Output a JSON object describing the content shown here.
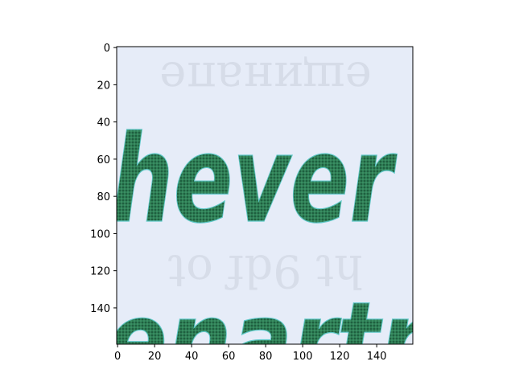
{
  "chart_data": {
    "type": "heatmap",
    "title": "",
    "xlabel": "",
    "ylabel": "",
    "image_width": 160,
    "image_height": 160,
    "xlim": [
      -0.5,
      159.5
    ],
    "ylim": [
      159.5,
      -0.5
    ],
    "x_ticks": [
      0,
      20,
      40,
      60,
      80,
      100,
      120,
      140
    ],
    "y_ticks": [
      0,
      20,
      40,
      60,
      80,
      100,
      120,
      140
    ],
    "x_tick_labels": [
      "0",
      "20",
      "40",
      "60",
      "80",
      "100",
      "120",
      "140"
    ],
    "y_tick_labels": [
      "0",
      "20",
      "40",
      "60",
      "80",
      "100",
      "120",
      "140"
    ],
    "image_content": {
      "main_word": "hever",
      "bottom_word": "enartn",
      "bleed_through_rows": [
        "ещинапе",
        "ht 9df ot"
      ]
    }
  },
  "colors": {
    "paper": "#e6ecf8",
    "ink": "#2e7d55",
    "ink_edge": "#5fc8c8",
    "bleed": "#c9cfdc"
  }
}
